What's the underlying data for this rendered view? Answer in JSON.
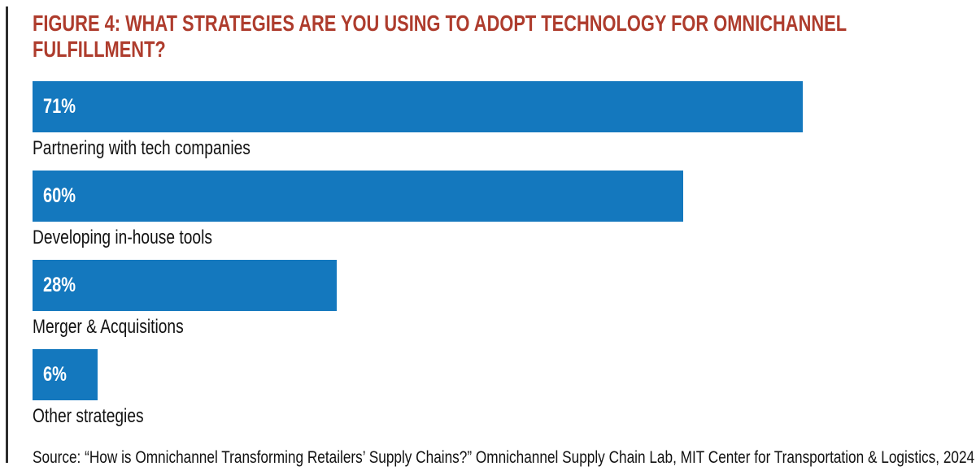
{
  "figure": {
    "title_line1": "FIGURE 4: WHAT STRATEGIES ARE YOU USING TO ADOPT TECHNOLOGY FOR OMNICHANNEL",
    "title_line2": "FULFILLMENT?",
    "source": "Source: “How is Omnichannel Transforming Retailers’ Supply Chains?” Omnichannel Supply Chain Lab, MIT Center for Transportation & Logistics, 2024"
  },
  "colors": {
    "title_red": "#ae3c2d",
    "bar_blue": "#1478be",
    "accent_line_dark": "#2d2d2d",
    "value_label_white": "#ffffff",
    "text_black": "#121212"
  },
  "chart_data": {
    "type": "bar",
    "orientation": "horizontal",
    "title": "FIGURE 4: WHAT STRATEGIES ARE YOU USING TO ADOPT TECHNOLOGY FOR OMNICHANNEL FULFILLMENT?",
    "categories": [
      "Partnering with tech companies",
      "Developing in-house tools",
      "Merger & Acquisitions",
      "Other strategies"
    ],
    "values": [
      71,
      60,
      28,
      6
    ],
    "value_labels": [
      "71%",
      "60%",
      "28%",
      "6%"
    ],
    "xlim": [
      0,
      87
    ],
    "grid": false,
    "legend": false,
    "value_label_position": "inside-left",
    "category_label_position": "below-bar",
    "source": "Source: “How is Omnichannel Transforming Retailers’ Supply Chains?” Omnichannel Supply Chain Lab, MIT Center for Transportation & Logistics, 2024"
  }
}
